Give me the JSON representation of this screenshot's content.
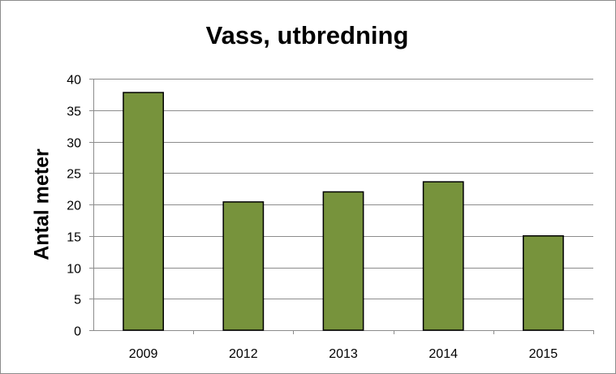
{
  "chart_data": {
    "type": "bar",
    "title": "Vass, utbredning",
    "xlabel": "",
    "ylabel": "Antal meter",
    "categories": [
      "2009",
      "2012",
      "2013",
      "2014",
      "2015"
    ],
    "values": [
      37.8,
      20.4,
      22.0,
      23.6,
      15.0
    ],
    "ylim": [
      0,
      40
    ],
    "yticks": [
      0,
      5,
      10,
      15,
      20,
      25,
      30,
      35,
      40
    ],
    "grid": true,
    "bar_color": "#77933c",
    "bar_edge_color": "#000000"
  }
}
